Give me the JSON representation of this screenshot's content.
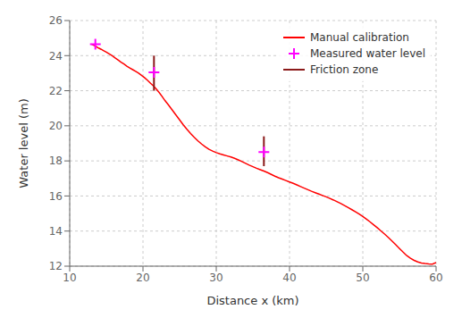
{
  "chart_data": {
    "type": "line",
    "title": "",
    "xlabel": "Distance x (km)",
    "ylabel": "Water level (m)",
    "xlim": [
      10,
      60
    ],
    "ylim": [
      12,
      26
    ],
    "xticks": [
      10,
      20,
      30,
      40,
      50,
      60
    ],
    "yticks": [
      12,
      14,
      16,
      18,
      20,
      22,
      24,
      26
    ],
    "grid": true,
    "legend": "upper right",
    "series": [
      {
        "name": "Manual calibration",
        "type": "line",
        "color": "#ff0000",
        "x": [
          13.0,
          13.2,
          13.4,
          13.6,
          13.8,
          14.0,
          14.3,
          14.6,
          15.0,
          15.4,
          15.8,
          16.2,
          16.6,
          17.0,
          17.4,
          17.8,
          18.2,
          18.6,
          19.0,
          19.4,
          19.8,
          20.2,
          20.6,
          21.0,
          21.4,
          21.8,
          22.2,
          22.6,
          23.0,
          23.5,
          24.0,
          24.5,
          25.0,
          25.5,
          26.0,
          26.5,
          27.0,
          27.5,
          28.0,
          28.5,
          29.0,
          29.5,
          30.0,
          30.5,
          31.0,
          31.5,
          32.0,
          32.5,
          33.0,
          33.5,
          34.0,
          34.5,
          35.0,
          35.5,
          36.0,
          36.5,
          37.0,
          37.5,
          38.0,
          38.5,
          39.0,
          39.5,
          40.0,
          40.5,
          41.0,
          41.5,
          42.0,
          42.5,
          43.0,
          43.5,
          44.0,
          44.5,
          45.0,
          45.5,
          46.0,
          46.5,
          47.0,
          47.5,
          48.0,
          48.5,
          49.0,
          49.5,
          50.0,
          50.5,
          51.0,
          51.5,
          52.0,
          52.5,
          53.0,
          53.5,
          54.0,
          54.5,
          55.0,
          55.5,
          56.0,
          56.5,
          57.0,
          57.5,
          58.0,
          58.5,
          59.0,
          59.5,
          60.0
        ],
        "values": [
          24.65,
          24.61,
          24.57,
          24.52,
          24.47,
          24.42,
          24.36,
          24.29,
          24.2,
          24.1,
          23.99,
          23.87,
          23.75,
          23.63,
          23.52,
          23.4,
          23.3,
          23.2,
          23.1,
          23.0,
          22.88,
          22.75,
          22.6,
          22.44,
          22.28,
          22.1,
          21.9,
          21.68,
          21.44,
          21.18,
          20.9,
          20.62,
          20.34,
          20.06,
          19.8,
          19.56,
          19.34,
          19.14,
          18.96,
          18.8,
          18.66,
          18.56,
          18.47,
          18.4,
          18.34,
          18.28,
          18.22,
          18.15,
          18.06,
          17.96,
          17.86,
          17.76,
          17.67,
          17.58,
          17.5,
          17.42,
          17.33,
          17.23,
          17.13,
          17.04,
          16.96,
          16.88,
          16.8,
          16.72,
          16.63,
          16.54,
          16.45,
          16.36,
          16.27,
          16.19,
          16.11,
          16.03,
          15.95,
          15.86,
          15.77,
          15.67,
          15.57,
          15.46,
          15.34,
          15.22,
          15.1,
          14.97,
          14.83,
          14.68,
          14.52,
          14.35,
          14.18,
          14.0,
          13.82,
          13.63,
          13.43,
          13.22,
          13.01,
          12.8,
          12.6,
          12.45,
          12.33,
          12.24,
          12.18,
          12.15,
          12.13,
          12.12,
          12.2
        ]
      },
      {
        "name": "Measured water level",
        "type": "scatter",
        "marker": "plus",
        "color": "#ff00ff",
        "x": [
          13.5,
          21.5,
          36.5
        ],
        "values": [
          24.65,
          23.05,
          18.5
        ]
      },
      {
        "name": "Friction zone",
        "type": "segment",
        "color": "#8b1a1a",
        "x": [
          21.5,
          36.5
        ],
        "low": [
          22.0,
          17.7
        ],
        "high": [
          24.0,
          19.4
        ]
      }
    ]
  }
}
